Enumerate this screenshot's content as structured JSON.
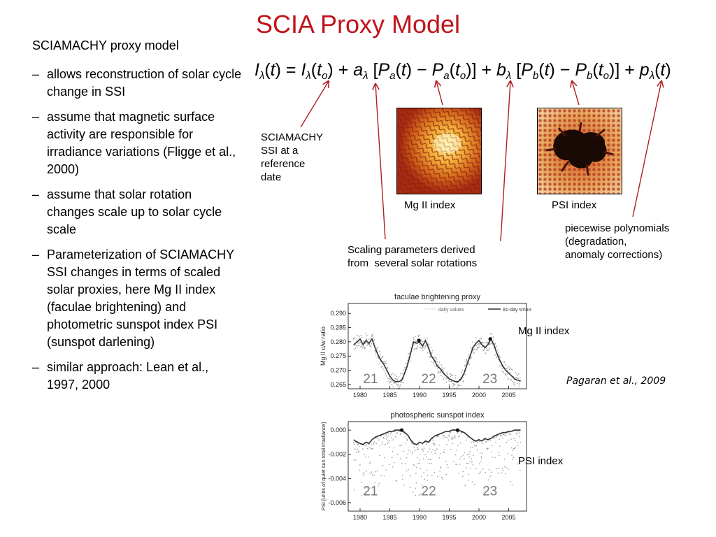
{
  "slide": {
    "title": "SCIA Proxy Model",
    "intro": "SCIAMACHY proxy model",
    "bullets": [
      "allows reconstruction of solar cycle change in SSI",
      "assume that magnetic surface activity are responsible for irradiance variations (Fligge et al., 2000)",
      "assume that solar rotation changes scale up to solar cycle scale",
      "Parameterization of SCIAMACHY SSI changes in terms of scaled solar proxies, here Mg II index (faculae brightening) and photometric sunspot index PSI (sunspot darlening)",
      "similar approach: Lean et al., 1997, 2000"
    ],
    "bullet_marker": "–"
  },
  "equation": {
    "text": "Iλ(t) = Iλ(to) + aλ [Pa(t) − Pa(to)] + bλ [Pb(t) − Pb(to)] + pλ(t)"
  },
  "annotations": {
    "reference": [
      "SCIAMACHY",
      "SSI at a",
      "reference",
      "date"
    ],
    "mg_image_label": "Mg II index",
    "psi_image_label": "PSI index",
    "polynomials": [
      "piecewise polynomials",
      "(degradation,",
      "anomaly corrections)"
    ],
    "scaling": [
      "Scaling parameters derived",
      "from  several solar rotations"
    ],
    "mg_chart_label": "Mg II index",
    "psi_chart_label": "PSI index",
    "citation": "Pagaran et al., 2009"
  },
  "colors": {
    "title": "#c0141b",
    "arrows": "#b01e24"
  },
  "chart_data": [
    {
      "type": "line",
      "title": "faculae brightening proxy",
      "ylabel": "Mg II c/w ratio",
      "legend": [
        "daily values",
        "81-day smooth"
      ],
      "legend_placement": "top",
      "xlim": [
        1978,
        2008
      ],
      "ylim": [
        0.2635,
        0.2935
      ],
      "xticks": [
        "1980",
        "1985",
        "1990",
        "1995",
        "2000",
        "2005"
      ],
      "yticks": [
        "0.290",
        "0.285",
        "0.280",
        "0.275",
        "0.270",
        "0.265"
      ],
      "cycle_labels": [
        {
          "text": "21",
          "x": 1980.5,
          "y": 0.2655
        },
        {
          "text": "22",
          "x": 1990.3,
          "y": 0.2655
        },
        {
          "text": "23",
          "x": 2000.6,
          "y": 0.2655
        }
      ],
      "series": [
        {
          "name": "81-day smooth",
          "x": [
            1978.9,
            1979.5,
            1980.0,
            1980.5,
            1981.0,
            1981.5,
            1982.0,
            1982.5,
            1983.0,
            1983.5,
            1984.0,
            1984.5,
            1985.0,
            1985.5,
            1986.0,
            1986.5,
            1987.0,
            1987.5,
            1988.0,
            1988.5,
            1989.0,
            1989.5,
            1990.0,
            1990.5,
            1991.0,
            1991.5,
            1992.0,
            1992.5,
            1993.0,
            1993.5,
            1994.0,
            1994.5,
            1995.0,
            1995.5,
            1996.0,
            1996.5,
            1997.0,
            1997.5,
            1998.0,
            1998.5,
            1999.0,
            1999.5,
            2000.0,
            2000.5,
            2001.0,
            2001.5,
            2002.0,
            2002.5,
            2003.0,
            2003.5,
            2004.0,
            2004.5,
            2005.0,
            2005.5,
            2006.0,
            2006.5,
            2007.0
          ],
          "y": [
            0.279,
            0.28,
            0.281,
            0.279,
            0.2805,
            0.2795,
            0.281,
            0.278,
            0.2755,
            0.2735,
            0.272,
            0.27,
            0.268,
            0.2665,
            0.266,
            0.266,
            0.2665,
            0.269,
            0.272,
            0.276,
            0.28,
            0.2795,
            0.28,
            0.2785,
            0.2805,
            0.278,
            0.275,
            0.2735,
            0.2715,
            0.2705,
            0.269,
            0.268,
            0.267,
            0.2665,
            0.266,
            0.266,
            0.267,
            0.269,
            0.272,
            0.275,
            0.278,
            0.2795,
            0.2805,
            0.279,
            0.278,
            0.279,
            0.281,
            0.279,
            0.276,
            0.2735,
            0.2715,
            0.27,
            0.269,
            0.268,
            0.267,
            0.2665,
            0.2662
          ],
          "color": "#333333"
        },
        {
          "name": "daily values",
          "style": "scatter-band",
          "spread": 0.0025,
          "color": "#9a9a9a"
        }
      ],
      "markers": [
        {
          "x": 1989.9,
          "y": 0.2805
        },
        {
          "x": 2001.9,
          "y": 0.281
        }
      ]
    },
    {
      "type": "line",
      "title": "photospheric sunspot index",
      "ylabel": "PSI [units of quiet sun total irradiance]",
      "xlim": [
        1978,
        2008
      ],
      "ylim": [
        -0.0067,
        0.0007
      ],
      "xticks": [
        "1980",
        "1985",
        "1990",
        "1995",
        "2000",
        "2005"
      ],
      "yticks": [
        "0.000",
        "-0.002",
        "-0.004",
        "-0.006"
      ],
      "cycle_labels": [
        {
          "text": "21",
          "x": 1980.5,
          "y": -0.0054
        },
        {
          "text": "22",
          "x": 1990.3,
          "y": -0.0054
        },
        {
          "text": "23",
          "x": 2000.6,
          "y": -0.0054
        }
      ],
      "series": [
        {
          "name": "81-day smooth",
          "x": [
            1978.9,
            1979.5,
            1980.0,
            1980.5,
            1981.0,
            1981.5,
            1982.0,
            1982.5,
            1983.0,
            1983.5,
            1984.0,
            1984.5,
            1985.0,
            1985.5,
            1986.0,
            1986.5,
            1987.0,
            1987.5,
            1988.0,
            1988.5,
            1989.0,
            1989.5,
            1990.0,
            1990.5,
            1991.0,
            1991.5,
            1992.0,
            1992.5,
            1993.0,
            1993.5,
            1994.0,
            1994.5,
            1995.0,
            1995.5,
            1996.0,
            1996.5,
            1997.0,
            1997.5,
            1998.0,
            1998.5,
            1999.0,
            1999.5,
            2000.0,
            2000.5,
            2001.0,
            2001.5,
            2002.0,
            2002.5,
            2003.0,
            2003.5,
            2004.0,
            2004.5,
            2005.0,
            2005.5,
            2006.0,
            2006.5,
            2007.0
          ],
          "y": [
            -0.0008,
            -0.001,
            -0.0011,
            -0.0012,
            -0.001,
            -0.0011,
            -0.0008,
            -0.0006,
            -0.0005,
            -0.0004,
            -0.0003,
            -0.0002,
            -0.0001,
            -0.0001,
            0.0,
            0.0,
            0.0,
            -0.0002,
            -0.0004,
            -0.0008,
            -0.0011,
            -0.0012,
            -0.001,
            -0.0011,
            -0.0009,
            -0.001,
            -0.0007,
            -0.0005,
            -0.0004,
            -0.0003,
            -0.0002,
            -0.0001,
            -0.0001,
            0.0,
            0.0,
            0.0,
            -0.0001,
            -0.0002,
            -0.0004,
            -0.0006,
            -0.0008,
            -0.0009,
            -0.0008,
            -0.0009,
            -0.0007,
            -0.0008,
            -0.0007,
            -0.0005,
            -0.0004,
            -0.0003,
            -0.0002,
            -0.0002,
            -0.0001,
            -0.0001,
            0.0,
            0.0,
            0.0
          ],
          "color": "#333333"
        },
        {
          "name": "daily values",
          "style": "scatter-spikes",
          "spread": 0.0014,
          "color": "#9a9a9a"
        }
      ],
      "markers": [
        {
          "x": 1987.0,
          "y": 0.0
        },
        {
          "x": 1996.4,
          "y": 0.0
        }
      ]
    }
  ]
}
